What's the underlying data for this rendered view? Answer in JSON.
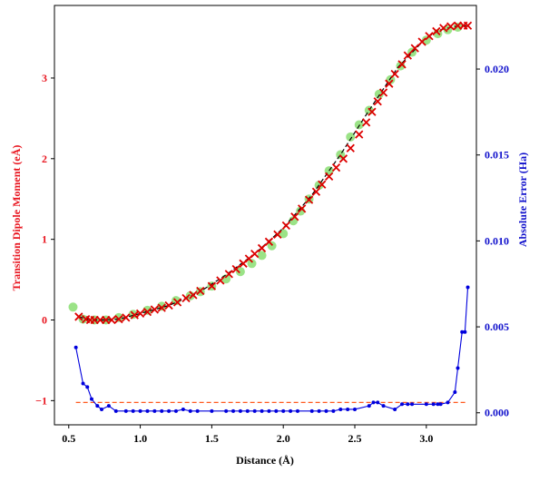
{
  "chart_data": {
    "type": "scatter",
    "xlabel": "Distance (Å)",
    "ylabel_left": "Transition Dipole Moment (eÅ)",
    "ylabel_right": "Absolute Error (Ha)",
    "xlim": [
      0.4,
      3.35
    ],
    "ylim_left": [
      -1.3,
      3.9
    ],
    "ylim_right": [
      -0.0007,
      0.0237
    ],
    "xticks": [
      "0.5",
      "1.0",
      "1.5",
      "2.0",
      "2.5",
      "3.0"
    ],
    "yticks_left": [
      "−1",
      "0",
      "1",
      "2",
      "3"
    ],
    "yticks_right": [
      "0.000",
      "0.005",
      "0.010",
      "0.015",
      "0.020"
    ],
    "grid": false,
    "colors": {
      "left_axis": "#e8141e",
      "right_axis": "#1010cc",
      "reference": "#90e07a",
      "prediction": "#dd0000",
      "fit_line": "#000000",
      "error_line": "#0000dd",
      "error_reference": "#ff5a1f"
    },
    "series": [
      {
        "axis": "left",
        "style": "large-dots",
        "x": [
          0.53,
          0.6,
          0.68,
          0.76,
          0.85,
          0.95,
          1.05,
          1.15,
          1.25,
          1.35,
          1.42,
          1.5,
          1.6,
          1.7,
          1.78,
          1.85,
          1.92,
          2.0,
          2.07,
          2.12,
          2.18,
          2.25,
          2.32,
          2.4,
          2.47,
          2.53,
          2.6,
          2.67,
          2.75,
          2.82,
          2.9,
          3.0,
          3.08,
          3.15,
          3.22
        ],
        "y": [
          0.16,
          0.01,
          0.0,
          0.0,
          0.03,
          0.07,
          0.12,
          0.17,
          0.24,
          0.3,
          0.35,
          0.42,
          0.51,
          0.6,
          0.7,
          0.8,
          0.92,
          1.07,
          1.23,
          1.35,
          1.5,
          1.67,
          1.85,
          2.05,
          2.27,
          2.42,
          2.6,
          2.8,
          2.98,
          3.15,
          3.32,
          3.47,
          3.55,
          3.6,
          3.63
        ]
      },
      {
        "axis": "left",
        "style": "x-markers",
        "x": [
          0.57,
          0.62,
          0.65,
          0.68,
          0.72,
          0.76,
          0.8,
          0.85,
          0.9,
          0.96,
          1.0,
          1.05,
          1.1,
          1.15,
          1.2,
          1.26,
          1.32,
          1.37,
          1.42,
          1.5,
          1.56,
          1.62,
          1.67,
          1.72,
          1.76,
          1.8,
          1.85,
          1.9,
          1.96,
          2.02,
          2.08,
          2.13,
          2.18,
          2.23,
          2.27,
          2.32,
          2.37,
          2.42,
          2.47,
          2.53,
          2.58,
          2.62,
          2.66,
          2.7,
          2.74,
          2.78,
          2.83,
          2.87,
          2.92,
          2.97,
          3.02,
          3.07,
          3.12,
          3.17,
          3.22,
          3.26,
          3.29
        ],
        "y": [
          0.04,
          0.01,
          0.0,
          0.0,
          0.0,
          0.0,
          0.0,
          0.01,
          0.03,
          0.06,
          0.08,
          0.1,
          0.13,
          0.15,
          0.18,
          0.22,
          0.27,
          0.31,
          0.36,
          0.42,
          0.49,
          0.57,
          0.63,
          0.7,
          0.76,
          0.82,
          0.89,
          0.97,
          1.06,
          1.17,
          1.28,
          1.38,
          1.49,
          1.59,
          1.68,
          1.78,
          1.89,
          2.0,
          2.13,
          2.3,
          2.45,
          2.58,
          2.71,
          2.82,
          2.93,
          3.05,
          3.17,
          3.28,
          3.37,
          3.45,
          3.52,
          3.58,
          3.62,
          3.64,
          3.65,
          3.65,
          3.65
        ]
      },
      {
        "axis": "left",
        "style": "dashed-line",
        "x": [
          0.57,
          0.65,
          0.75,
          0.85,
          1.0,
          1.2,
          1.4,
          1.6,
          1.8,
          2.0,
          2.2,
          2.4,
          2.6,
          2.8,
          3.0,
          3.1,
          3.2,
          3.29
        ],
        "y": [
          0.04,
          0.0,
          0.0,
          0.01,
          0.08,
          0.18,
          0.33,
          0.56,
          0.82,
          1.14,
          1.55,
          2.05,
          2.6,
          3.13,
          3.5,
          3.6,
          3.64,
          3.65
        ]
      },
      {
        "axis": "right",
        "style": "line-dots",
        "x": [
          0.55,
          0.6,
          0.63,
          0.66,
          0.7,
          0.73,
          0.78,
          0.83,
          0.9,
          0.95,
          1.0,
          1.05,
          1.1,
          1.15,
          1.2,
          1.25,
          1.3,
          1.35,
          1.4,
          1.5,
          1.6,
          1.65,
          1.7,
          1.75,
          1.8,
          1.85,
          1.9,
          1.95,
          2.0,
          2.05,
          2.1,
          2.2,
          2.25,
          2.3,
          2.35,
          2.4,
          2.45,
          2.5,
          2.6,
          2.63,
          2.66,
          2.7,
          2.78,
          2.83,
          2.87,
          2.9,
          3.0,
          3.05,
          3.08,
          3.1,
          3.15,
          3.2,
          3.22,
          3.25,
          3.27,
          3.29
        ],
        "y": [
          0.0038,
          0.0017,
          0.0015,
          0.0008,
          0.0004,
          0.0002,
          0.0004,
          0.0001,
          0.0001,
          0.0001,
          0.0001,
          0.0001,
          0.0001,
          0.0001,
          0.0001,
          0.0001,
          0.0002,
          0.0001,
          0.0001,
          0.0001,
          0.0001,
          0.0001,
          0.0001,
          0.0001,
          0.0001,
          0.0001,
          0.0001,
          0.0001,
          0.0001,
          0.0001,
          0.0001,
          0.0001,
          0.0001,
          0.0001,
          0.0001,
          0.0002,
          0.0002,
          0.0002,
          0.0004,
          0.0006,
          0.0006,
          0.0004,
          0.0002,
          0.0005,
          0.0005,
          0.0005,
          0.0005,
          0.0005,
          0.0005,
          0.0005,
          0.0006,
          0.0012,
          0.0026,
          0.0047,
          0.0047,
          0.0073
        ]
      },
      {
        "axis": "right",
        "style": "dashed-reference",
        "x": [
          0.55,
          3.29
        ],
        "y": [
          0.0006,
          0.0006
        ]
      }
    ]
  }
}
